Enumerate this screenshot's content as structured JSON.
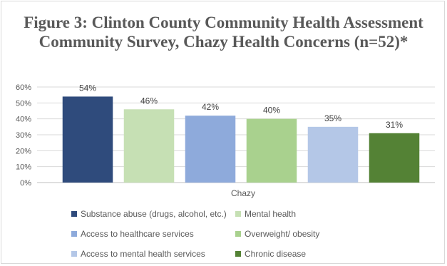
{
  "chart_data": {
    "type": "bar",
    "title": "Figure 3: Clinton County Community Health Assessment Community Survey, Chazy Health Concerns (n=52)*",
    "categories": [
      "Chazy"
    ],
    "series": [
      {
        "name": "Substance abuse (drugs, alcohol, etc.)",
        "values": [
          54
        ],
        "color": "#2f4b7c",
        "label": "54%"
      },
      {
        "name": "Mental health",
        "values": [
          46
        ],
        "color": "#c6e0b4",
        "label": "46%"
      },
      {
        "name": "Access to healthcare services",
        "values": [
          42
        ],
        "color": "#8eaadb",
        "label": "42%"
      },
      {
        "name": "Overweight/ obesity",
        "values": [
          40
        ],
        "color": "#a9d18e",
        "label": "40%"
      },
      {
        "name": "Access to mental health services",
        "values": [
          35
        ],
        "color": "#b4c7e7",
        "label": "35%"
      },
      {
        "name": "Chronic disease",
        "values": [
          31
        ],
        "color": "#548235",
        "label": "31%"
      }
    ],
    "ylim": [
      0,
      60
    ],
    "yticks": [
      "0%",
      "10%",
      "20%",
      "30%",
      "40%",
      "50%",
      "60%"
    ],
    "grid": true,
    "legend_position": "bottom",
    "xlabel": "",
    "ylabel": ""
  }
}
